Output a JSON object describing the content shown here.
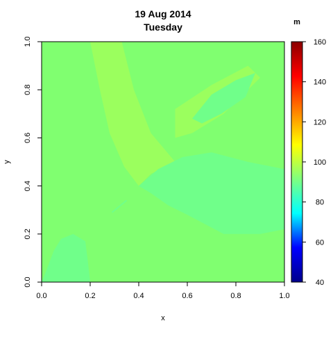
{
  "chart_data": {
    "type": "heatmap",
    "title": "19 Aug 2014",
    "subtitle": "Tuesday",
    "xlabel": "x",
    "ylabel": "y",
    "xlim": [
      0.0,
      1.0
    ],
    "ylim": [
      0.0,
      1.0
    ],
    "x_ticks": [
      "0.0",
      "0.2",
      "0.4",
      "0.6",
      "0.8",
      "1.0"
    ],
    "y_ticks": [
      "0.0",
      "0.2",
      "0.4",
      "0.6",
      "0.8",
      "1.0"
    ],
    "colorbar": {
      "label": "m",
      "range": [
        40,
        160
      ],
      "ticks": [
        "40",
        "60",
        "80",
        "100",
        "120",
        "140",
        "160"
      ],
      "colormap": [
        "#00008b",
        "#0000ff",
        "#00ffff",
        "#7fff7f",
        "#ffff00",
        "#ff7f00",
        "#ff0000",
        "#8b0000"
      ]
    },
    "field": {
      "background_value": 101,
      "regions": [
        {
          "description": "ridge band upper-left to center",
          "value": 103
        },
        {
          "description": "lower-right valley band",
          "value": 97
        },
        {
          "description": "lower-left corner patch",
          "value": 97
        },
        {
          "description": "upper-right hill patch",
          "value": 98
        }
      ]
    },
    "grid": false,
    "legend": "colorbar-right"
  },
  "colors": {
    "background_field": "#80ff70",
    "ridge": "#9bff5e",
    "valley": "#70ff8a"
  }
}
